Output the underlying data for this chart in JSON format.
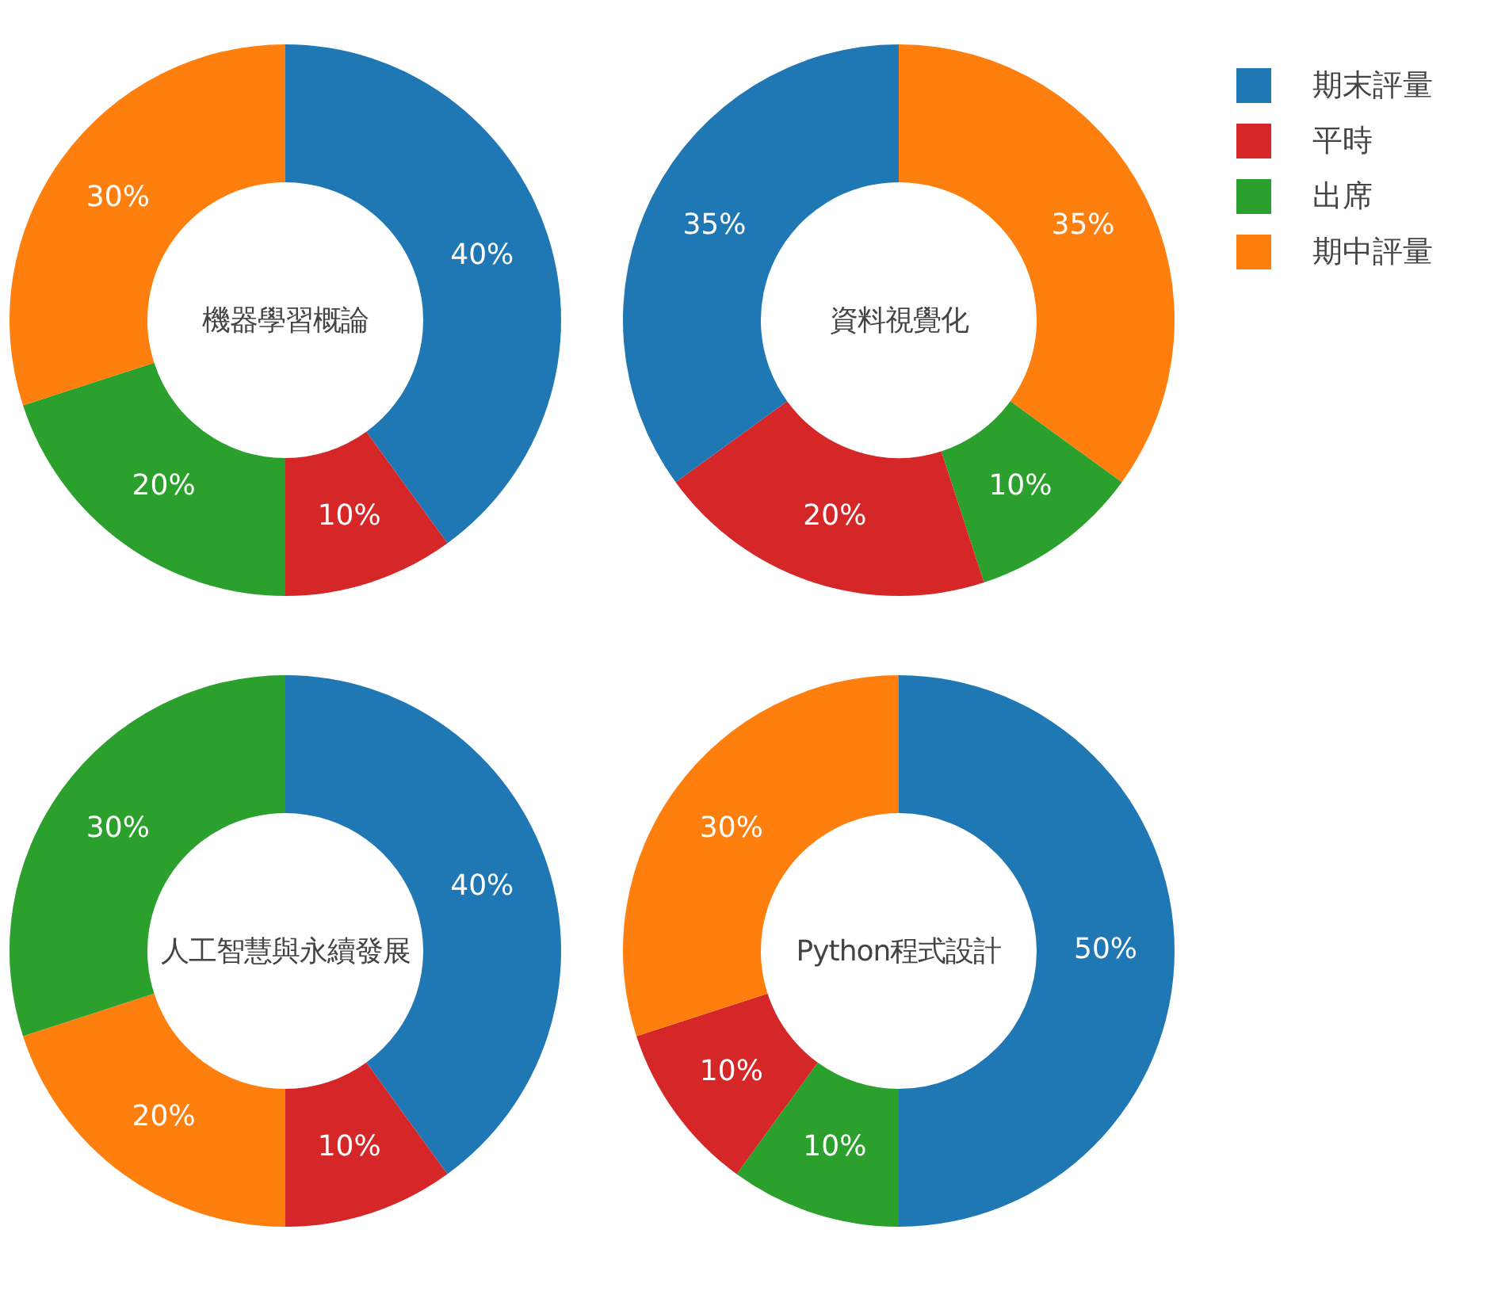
{
  "chart_data": [
    {
      "type": "donut",
      "title": "機器學習概論",
      "categories": [
        "期末評量",
        "平時",
        "出席",
        "期中評量"
      ],
      "values": [
        40,
        10,
        20,
        30
      ],
      "colors": [
        "#1f77b4",
        "#d62728",
        "#2ca02c",
        "#ff7f0e"
      ],
      "value_labels": [
        "40%",
        "10%",
        "20%",
        "30%"
      ],
      "legend": "right"
    },
    {
      "type": "donut",
      "title": "資料視覺化",
      "categories": [
        null,
        null,
        null,
        null
      ],
      "values": [
        35,
        10,
        20,
        35
      ],
      "colors": [
        "#ff7f0e",
        "#2ca02c",
        "#d62728",
        "#1f77b4"
      ],
      "value_labels": [
        "35%",
        "10%",
        "20%",
        "35%"
      ]
    },
    {
      "type": "donut",
      "title": "人工智慧與永續發展",
      "categories": [
        null,
        null,
        null,
        null
      ],
      "values": [
        40,
        10,
        20,
        30
      ],
      "colors": [
        "#1f77b4",
        "#d62728",
        "#ff7f0e",
        "#2ca02c"
      ],
      "value_labels": [
        "40%",
        "10%",
        "20%",
        "30%"
      ]
    },
    {
      "type": "donut",
      "title": "Python程式設計",
      "categories": [
        null,
        null,
        null,
        null
      ],
      "values": [
        50,
        10,
        10,
        30
      ],
      "colors": [
        "#1f77b4",
        "#2ca02c",
        "#d62728",
        "#ff7f0e"
      ],
      "value_labels": [
        "50%",
        "10%",
        "10%",
        "30%"
      ]
    }
  ]
}
